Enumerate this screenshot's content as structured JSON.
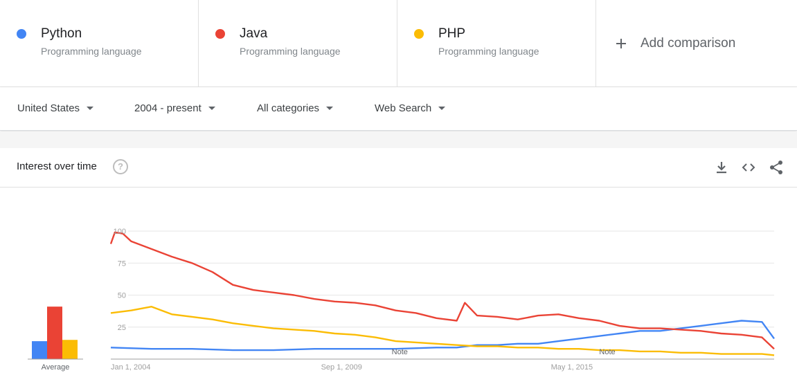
{
  "terms": [
    {
      "name": "Python",
      "description": "Programming language",
      "color": "#4285f4"
    },
    {
      "name": "Java",
      "description": "Programming language",
      "color": "#ea4335"
    },
    {
      "name": "PHP",
      "description": "Programming language",
      "color": "#fbbc04"
    }
  ],
  "add_comparison": {
    "label": "Add comparison",
    "icon": "plus-icon"
  },
  "filters": {
    "region": "United States",
    "time_range": "2004 - present",
    "category": "All categories",
    "search_type": "Web Search"
  },
  "panel": {
    "title": "Interest over time",
    "help_icon": "help-circle-icon",
    "tools": [
      "download-icon",
      "embed-code-icon",
      "share-icon"
    ]
  },
  "chart_data": {
    "type": "line",
    "y_ticks": [
      25,
      50,
      75,
      100
    ],
    "ylim": [
      0,
      100
    ],
    "x_ticks": [
      {
        "label": "Jan 1, 2004",
        "x": 2004.0
      },
      {
        "label": "Sep 1, 2009",
        "x": 2009.67
      },
      {
        "label": "May 1, 2015",
        "x": 2015.33
      }
    ],
    "notes": [
      {
        "label": "Note",
        "x": 2011.1
      },
      {
        "label": "Note",
        "x": 2016.2
      }
    ],
    "xlim": [
      2004.0,
      2020.3
    ],
    "series": [
      {
        "name": "Python",
        "color": "#4285f4",
        "x": [
          2004.0,
          2005.0,
          2006.0,
          2007.0,
          2008.0,
          2009.0,
          2010.0,
          2011.0,
          2012.0,
          2012.5,
          2013.0,
          2013.5,
          2014.0,
          2014.5,
          2015.0,
          2015.5,
          2016.0,
          2016.5,
          2017.0,
          2017.5,
          2018.0,
          2018.5,
          2019.0,
          2019.5,
          2020.0,
          2020.3
        ],
        "y": [
          9,
          8,
          8,
          7,
          7,
          8,
          8,
          8,
          9,
          9,
          11,
          11,
          12,
          12,
          14,
          16,
          18,
          20,
          22,
          22,
          24,
          26,
          28,
          30,
          29,
          16
        ]
      },
      {
        "name": "Java",
        "color": "#ea4335",
        "x": [
          2004.0,
          2004.1,
          2004.3,
          2004.5,
          2005.0,
          2005.5,
          2006.0,
          2006.5,
          2007.0,
          2007.5,
          2008.0,
          2008.5,
          2009.0,
          2009.5,
          2010.0,
          2010.5,
          2011.0,
          2011.5,
          2012.0,
          2012.5,
          2012.7,
          2013.0,
          2013.5,
          2014.0,
          2014.5,
          2015.0,
          2015.5,
          2016.0,
          2016.5,
          2017.0,
          2017.5,
          2018.0,
          2018.5,
          2019.0,
          2019.5,
          2020.0,
          2020.3
        ],
        "y": [
          90,
          99,
          98,
          92,
          86,
          80,
          75,
          68,
          58,
          54,
          52,
          50,
          47,
          45,
          44,
          42,
          38,
          36,
          32,
          30,
          44,
          34,
          33,
          31,
          34,
          35,
          32,
          30,
          26,
          24,
          24,
          23,
          22,
          20,
          19,
          17,
          8
        ]
      },
      {
        "name": "PHP",
        "color": "#fbbc04",
        "x": [
          2004.0,
          2004.5,
          2005.0,
          2005.5,
          2006.0,
          2006.5,
          2007.0,
          2007.5,
          2008.0,
          2008.5,
          2009.0,
          2009.5,
          2010.0,
          2010.5,
          2011.0,
          2011.5,
          2012.0,
          2012.5,
          2013.0,
          2013.5,
          2014.0,
          2014.5,
          2015.0,
          2015.5,
          2016.0,
          2016.5,
          2017.0,
          2017.5,
          2018.0,
          2018.5,
          2019.0,
          2019.5,
          2020.0,
          2020.3
        ],
        "y": [
          36,
          38,
          41,
          35,
          33,
          31,
          28,
          26,
          24,
          23,
          22,
          20,
          19,
          17,
          14,
          13,
          12,
          11,
          10,
          10,
          9,
          9,
          8,
          8,
          7,
          7,
          6,
          6,
          5,
          5,
          4,
          4,
          4,
          3
        ]
      }
    ],
    "average": {
      "label": "Average",
      "values": [
        {
          "name": "Python",
          "value": 14,
          "color": "#4285f4"
        },
        {
          "name": "Java",
          "value": 41,
          "color": "#ea4335"
        },
        {
          "name": "PHP",
          "value": 15,
          "color": "#fbbc04"
        }
      ]
    }
  }
}
